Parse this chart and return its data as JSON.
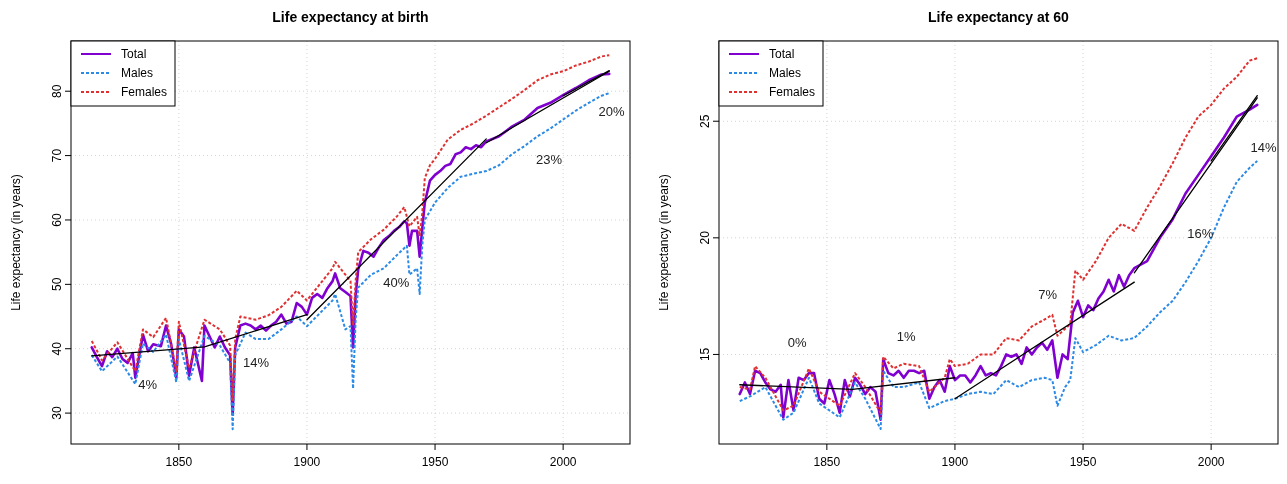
{
  "chart_data": [
    {
      "type": "line",
      "title": "Life expectancy at birth",
      "ylabel": "Life expectancy (in years)",
      "xlim": [
        1807.9,
        2026.1
      ],
      "ylim": [
        25.2,
        87.8
      ],
      "xticks": [
        1850,
        1900,
        1950,
        2000
      ],
      "yticks": [
        30,
        40,
        50,
        60,
        70,
        80
      ],
      "grid": true,
      "legend": "top left",
      "series": [
        {
          "name": "Total",
          "color": "#8000d0",
          "line_style": "solid",
          "x": [
            1816,
            1818,
            1820,
            1822,
            1824,
            1826,
            1828,
            1830,
            1832,
            1833,
            1836,
            1838,
            1840,
            1843,
            1845,
            1847,
            1849,
            1850,
            1852,
            1854,
            1856,
            1859,
            1860,
            1862,
            1864,
            1866,
            1868,
            1870,
            1871,
            1872,
            1874,
            1876,
            1878,
            1880,
            1882,
            1884,
            1886,
            1888,
            1890,
            1892,
            1894,
            1896,
            1898,
            1900,
            1902,
            1904,
            1906,
            1908,
            1910,
            1911,
            1913,
            1915,
            1917,
            1918,
            1919,
            1920,
            1922,
            1924,
            1926,
            1928,
            1930,
            1932,
            1934,
            1936,
            1938,
            1939,
            1940,
            1941,
            1943,
            1944,
            1945,
            1946,
            1948,
            1950,
            1952,
            1954,
            1956,
            1958,
            1960,
            1962,
            1964,
            1966,
            1968,
            1970,
            1975,
            1980,
            1985,
            1990,
            1995,
            2000,
            2005,
            2010,
            2015,
            2018
          ],
          "values": [
            40.2,
            38.7,
            37.3,
            39.6,
            38.7,
            40.0,
            38.4,
            37.8,
            39.3,
            35.5,
            42.2,
            39.6,
            40.7,
            40.4,
            43.6,
            40.7,
            35.5,
            43.0,
            41.9,
            35.8,
            40.2,
            35.0,
            43.6,
            41.9,
            40.2,
            41.9,
            40.2,
            39.0,
            29.8,
            40.2,
            43.6,
            43.9,
            43.6,
            43.0,
            43.6,
            42.8,
            43.6,
            44.2,
            45.3,
            43.9,
            44.2,
            47.1,
            46.5,
            45.3,
            47.9,
            48.5,
            47.9,
            49.4,
            50.5,
            51.7,
            49.4,
            48.8,
            48.2,
            40.2,
            48.2,
            52.3,
            55.2,
            54.9,
            54.3,
            55.7,
            56.9,
            57.5,
            58.3,
            58.9,
            59.8,
            59.5,
            56.0,
            58.3,
            58.3,
            54.3,
            58.6,
            62.7,
            66.1,
            67.0,
            67.6,
            68.4,
            68.7,
            70.2,
            70.5,
            71.3,
            71.0,
            71.6,
            71.3,
            72.2,
            73.0,
            74.5,
            75.6,
            77.4,
            78.2,
            79.4,
            80.5,
            81.7,
            82.6,
            82.7
          ]
        },
        {
          "name": "Males",
          "color": "#2b8ae6",
          "line_style": "dotted",
          "x": [
            1816,
            1820,
            1826,
            1833,
            1836,
            1840,
            1845,
            1849,
            1850,
            1854,
            1860,
            1866,
            1870,
            1871,
            1872,
            1876,
            1880,
            1885,
            1890,
            1896,
            1900,
            1905,
            1910,
            1911,
            1915,
            1917,
            1918,
            1919,
            1920,
            1925,
            1930,
            1935,
            1939,
            1940,
            1943,
            1944,
            1945,
            1946,
            1950,
            1955,
            1960,
            1965,
            1970,
            1975,
            1980,
            1985,
            1990,
            1995,
            2000,
            2005,
            2010,
            2015,
            2018
          ],
          "values": [
            39.0,
            36.5,
            38.8,
            34.5,
            40.8,
            39.5,
            42.2,
            34.8,
            41.5,
            35.0,
            42.0,
            40.5,
            37.8,
            27.5,
            39.0,
            42.5,
            41.5,
            41.5,
            43.0,
            45.0,
            43.5,
            45.5,
            47.5,
            48.5,
            43.0,
            43.5,
            33.8,
            44.5,
            49.5,
            51.5,
            52.5,
            54.5,
            56.0,
            51.5,
            52.5,
            48.5,
            56.0,
            60.0,
            62.7,
            65.0,
            66.7,
            67.2,
            67.6,
            68.5,
            70.2,
            71.5,
            73.0,
            74.2,
            75.6,
            77.0,
            78.2,
            79.3,
            79.7
          ]
        },
        {
          "name": "Females",
          "color": "#e03030",
          "line_style": "dotted",
          "x": [
            1816,
            1820,
            1826,
            1833,
            1836,
            1840,
            1845,
            1849,
            1850,
            1854,
            1860,
            1866,
            1870,
            1871,
            1872,
            1874,
            1880,
            1885,
            1890,
            1896,
            1900,
            1905,
            1910,
            1911,
            1915,
            1917,
            1918,
            1919,
            1920,
            1925,
            1930,
            1935,
            1938,
            1940,
            1943,
            1944,
            1945,
            1946,
            1948,
            1950,
            1955,
            1960,
            1965,
            1970,
            1975,
            1980,
            1985,
            1990,
            1995,
            2000,
            2005,
            2010,
            2015,
            2018
          ],
          "values": [
            41.2,
            38.2,
            41.0,
            36.5,
            43.0,
            41.8,
            44.8,
            36.5,
            44.2,
            37.0,
            44.5,
            43.0,
            40.5,
            32.0,
            41.5,
            45.0,
            44.5,
            45.2,
            46.5,
            49.0,
            47.5,
            50.0,
            52.5,
            53.5,
            51.5,
            50.5,
            43.6,
            50.5,
            55.0,
            57.0,
            58.5,
            60.5,
            62.0,
            59.0,
            60.5,
            57.5,
            61.0,
            66.5,
            68.5,
            69.5,
            72.5,
            74.0,
            75.0,
            76.2,
            77.5,
            78.8,
            80.2,
            81.7,
            82.6,
            83.1,
            84.0,
            84.6,
            85.4,
            85.6
          ]
        },
        {
          "type": "line",
          "color": "#000000",
          "line_style": "solid",
          "x": [
            1816,
            1860,
            1900
          ],
          "values": [
            38.9,
            40.3,
            45.3
          ]
        },
        {
          "type": "line",
          "color": "#000000",
          "line_style": "solid",
          "x": [
            1900,
            1970
          ],
          "values": [
            44.5,
            72.6
          ]
        },
        {
          "type": "line",
          "color": "#000000",
          "line_style": "solid",
          "x": [
            1970,
            2018
          ],
          "values": [
            72.0,
            83.1
          ]
        },
        {
          "type": "line",
          "color": "#000000",
          "line_style": "solid",
          "x": [
            2000,
            2018
          ],
          "values": [
            79.3,
            83.2
          ]
        }
      ],
      "annotations": [
        "4%",
        "14%",
        "40%",
        "23%",
        "20%"
      ]
    },
    {
      "type": "line",
      "title": "Life expectancy at 60",
      "ylabel": "Life expectancy (in years)",
      "xlim": [
        1807.9,
        2026.1
      ],
      "ylim": [
        11.16,
        28.44
      ],
      "xticks": [
        1850,
        1900,
        1950,
        2000
      ],
      "yticks": [
        15,
        20,
        25
      ],
      "grid": true,
      "legend": "top left",
      "series": [
        {
          "name": "Total",
          "color": "#8000d0",
          "line_style": "solid",
          "x": [
            1816,
            1818,
            1820,
            1822,
            1824,
            1826,
            1828,
            1830,
            1832,
            1833,
            1835,
            1837,
            1839,
            1841,
            1843,
            1845,
            1847,
            1849,
            1851,
            1853,
            1855,
            1857,
            1859,
            1861,
            1863,
            1865,
            1867,
            1869,
            1871,
            1872,
            1874,
            1876,
            1878,
            1880,
            1882,
            1884,
            1886,
            1888,
            1890,
            1892,
            1894,
            1896,
            1898,
            1900,
            1902,
            1904,
            1906,
            1908,
            1910,
            1912,
            1914,
            1916,
            1918,
            1920,
            1922,
            1924,
            1926,
            1928,
            1930,
            1932,
            1934,
            1936,
            1938,
            1940,
            1942,
            1944,
            1946,
            1948,
            1950,
            1952,
            1954,
            1956,
            1958,
            1960,
            1962,
            1964,
            1966,
            1968,
            1970,
            1975,
            1980,
            1985,
            1990,
            1995,
            2000,
            2005,
            2010,
            2015,
            2018
          ],
          "values": [
            13.3,
            13.8,
            13.3,
            14.3,
            14.2,
            13.8,
            13.5,
            13.4,
            13.7,
            12.3,
            13.9,
            12.6,
            14.0,
            13.9,
            14.2,
            14.2,
            13.1,
            12.9,
            13.9,
            13.3,
            12.5,
            13.9,
            13.2,
            14.0,
            13.7,
            13.3,
            13.6,
            13.4,
            12.2,
            14.8,
            14.2,
            14.1,
            14.3,
            14.0,
            14.3,
            14.3,
            14.2,
            14.3,
            13.1,
            13.6,
            13.9,
            13.4,
            14.5,
            13.9,
            14.1,
            14.1,
            13.8,
            14.1,
            14.5,
            14.1,
            14.2,
            14.1,
            14.5,
            15.0,
            14.9,
            15.0,
            14.6,
            15.3,
            15.0,
            15.3,
            15.5,
            15.2,
            15.6,
            14.0,
            15.0,
            14.8,
            16.8,
            17.3,
            16.6,
            17.1,
            16.9,
            17.4,
            17.7,
            18.2,
            17.7,
            18.4,
            17.9,
            18.4,
            18.7,
            19.0,
            20.0,
            20.8,
            21.9,
            22.7,
            23.5,
            24.3,
            25.2,
            25.5,
            25.7
          ]
        },
        {
          "name": "Males",
          "color": "#2b8ae6",
          "line_style": "dotted",
          "x": [
            1816,
            1820,
            1826,
            1833,
            1837,
            1843,
            1847,
            1855,
            1861,
            1865,
            1871,
            1872,
            1876,
            1880,
            1886,
            1890,
            1896,
            1900,
            1905,
            1910,
            1915,
            1920,
            1925,
            1930,
            1935,
            1938,
            1940,
            1943,
            1945,
            1947,
            1950,
            1955,
            1960,
            1965,
            1970,
            1975,
            1980,
            1985,
            1990,
            1995,
            2000,
            2005,
            2010,
            2015,
            2018
          ],
          "values": [
            13.0,
            13.2,
            13.6,
            12.2,
            12.5,
            14.0,
            12.9,
            12.3,
            13.8,
            13.1,
            11.8,
            14.3,
            13.6,
            13.6,
            13.8,
            12.7,
            13.0,
            13.1,
            13.3,
            13.4,
            13.3,
            13.9,
            13.6,
            13.9,
            14.0,
            13.9,
            12.8,
            13.6,
            13.9,
            15.7,
            15.1,
            15.4,
            15.8,
            15.6,
            15.7,
            16.2,
            16.8,
            17.3,
            18.1,
            19.0,
            20.0,
            21.3,
            22.4,
            23.0,
            23.3
          ]
        },
        {
          "name": "Females",
          "color": "#e03030",
          "line_style": "dotted",
          "x": [
            1816,
            1820,
            1822,
            1826,
            1833,
            1837,
            1843,
            1847,
            1855,
            1861,
            1865,
            1871,
            1872,
            1876,
            1880,
            1886,
            1890,
            1896,
            1898,
            1900,
            1905,
            1910,
            1915,
            1920,
            1925,
            1930,
            1935,
            1938,
            1940,
            1943,
            1945,
            1947,
            1950,
            1955,
            1960,
            1965,
            1970,
            1975,
            1980,
            1985,
            1990,
            1995,
            2000,
            2005,
            2010,
            2015,
            2018
          ],
          "values": [
            13.6,
            13.5,
            14.5,
            14.0,
            12.6,
            12.8,
            14.4,
            13.4,
            12.8,
            14.2,
            13.6,
            12.5,
            14.9,
            14.4,
            14.6,
            14.5,
            13.4,
            14.0,
            14.8,
            14.5,
            14.6,
            15.0,
            15.0,
            15.7,
            15.6,
            16.2,
            16.5,
            16.7,
            15.8,
            16.1,
            16.3,
            18.6,
            18.2,
            19.0,
            20.0,
            20.6,
            20.3,
            21.3,
            22.2,
            23.2,
            24.3,
            25.2,
            25.7,
            26.4,
            26.9,
            27.6,
            27.7
          ]
        },
        {
          "type": "line",
          "color": "#000000",
          "line_style": "solid",
          "x": [
            1816,
            1860,
            1900
          ],
          "values": [
            13.7,
            13.5,
            14.0
          ]
        },
        {
          "type": "line",
          "color": "#000000",
          "line_style": "solid",
          "x": [
            1900,
            1970
          ],
          "values": [
            13.1,
            18.1
          ]
        },
        {
          "type": "line",
          "color": "#000000",
          "line_style": "solid",
          "x": [
            1970,
            2018
          ],
          "values": [
            18.5,
            26.0
          ]
        },
        {
          "type": "line",
          "color": "#000000",
          "line_style": "solid",
          "x": [
            2000,
            2018
          ],
          "values": [
            23.3,
            26.1
          ]
        }
      ],
      "annotations": [
        "0%",
        "1%",
        "7%",
        "16%",
        "14%"
      ]
    }
  ]
}
